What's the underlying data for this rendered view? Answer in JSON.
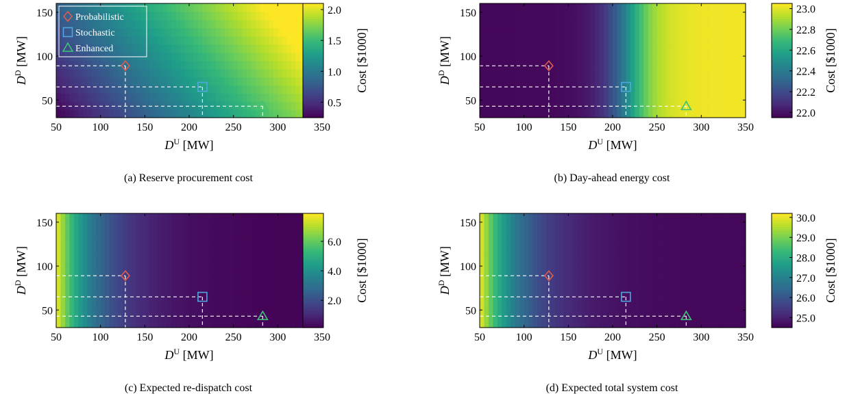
{
  "colormap": [
    "#440154",
    "#482878",
    "#3e4989",
    "#31688e",
    "#26828e",
    "#1f9e89",
    "#35b779",
    "#6ece58",
    "#b5de2b",
    "#fde725"
  ],
  "legend": {
    "items": [
      {
        "name": "Probabilistic",
        "marker": "diamond",
        "color": "#e05a4f"
      },
      {
        "name": "Stochastic",
        "marker": "square",
        "color": "#4ea8de"
      },
      {
        "name": "Enhanced",
        "marker": "triangle",
        "color": "#3ec27a"
      }
    ]
  },
  "chart_data": [
    {
      "type": "heatmap",
      "caption": "(a) Reserve procurement cost",
      "xlabel": "D^U [MW]",
      "ylabel": "D^D [MW]",
      "xlim": [
        50,
        350
      ],
      "ylim": [
        30,
        160
      ],
      "xticks": [
        50,
        100,
        150,
        200,
        250,
        300,
        350
      ],
      "yticks": [
        50,
        100,
        150
      ],
      "colorbar": {
        "label": "Cost [$1000]",
        "range": [
          0.25,
          2.1
        ],
        "ticks": [
          "0.5",
          "1.0",
          "1.5",
          "2.0"
        ]
      },
      "surface": {
        "kind": "sum",
        "base": 0.25,
        "ax": 0.0055,
        "ay": 0.0045
      },
      "show_legend": true,
      "points": [
        {
          "name": "Probabilistic",
          "x": 128,
          "y": 89
        },
        {
          "name": "Stochastic",
          "x": 215,
          "y": 65
        },
        {
          "name": "Enhanced",
          "x": 283,
          "y": 43
        }
      ]
    },
    {
      "type": "heatmap",
      "caption": "(b) Day-ahead energy cost",
      "xlabel": "D^U [MW]",
      "ylabel": "D^D [MW]",
      "xlim": [
        50,
        350
      ],
      "ylim": [
        30,
        160
      ],
      "xticks": [
        50,
        100,
        150,
        200,
        250,
        300,
        350
      ],
      "yticks": [
        50,
        100,
        150
      ],
      "colorbar": {
        "label": "Cost [$1000]",
        "range": [
          21.95,
          23.05
        ],
        "ticks": [
          "22.0",
          "22.2",
          "22.4",
          "22.6",
          "22.8",
          "23.0"
        ]
      },
      "surface": {
        "kind": "sigmoid",
        "min": 21.97,
        "max": 23.03,
        "mid": 218,
        "width": 16
      },
      "show_legend": false,
      "points": [
        {
          "name": "Probabilistic",
          "x": 128,
          "y": 89
        },
        {
          "name": "Stochastic",
          "x": 215,
          "y": 65
        },
        {
          "name": "Enhanced",
          "x": 283,
          "y": 43
        }
      ]
    },
    {
      "type": "heatmap",
      "caption": "(c) Expected re-dispatch cost",
      "xlabel": "D^U [MW]",
      "ylabel": "D^D [MW]",
      "xlim": [
        50,
        350
      ],
      "ylim": [
        30,
        160
      ],
      "xticks": [
        50,
        100,
        150,
        200,
        250,
        300,
        350
      ],
      "yticks": [
        50,
        100,
        150
      ],
      "colorbar": {
        "label": "Cost [$1000]",
        "range": [
          0.15,
          7.9
        ],
        "ticks": [
          "2.0",
          "4.0",
          "6.0"
        ]
      },
      "surface": {
        "kind": "decay",
        "min": 0.2,
        "max": 7.8,
        "scale": 45
      },
      "show_legend": false,
      "points": [
        {
          "name": "Probabilistic",
          "x": 128,
          "y": 89
        },
        {
          "name": "Stochastic",
          "x": 215,
          "y": 65
        },
        {
          "name": "Enhanced",
          "x": 283,
          "y": 43
        }
      ]
    },
    {
      "type": "heatmap",
      "caption": "(d) Expected total system cost",
      "xlabel": "D^U [MW]",
      "ylabel": "D^D [MW]",
      "xlim": [
        50,
        350
      ],
      "ylim": [
        30,
        160
      ],
      "xticks": [
        50,
        100,
        150,
        200,
        250,
        300,
        350
      ],
      "yticks": [
        50,
        100,
        150
      ],
      "colorbar": {
        "label": "Cost [$1000]",
        "range": [
          24.5,
          30.2
        ],
        "ticks": [
          "25.0",
          "26.0",
          "27.0",
          "28.0",
          "29.0",
          "30.0"
        ]
      },
      "surface": {
        "kind": "decay",
        "min": 24.6,
        "max": 30.1,
        "scale": 45
      },
      "show_legend": false,
      "points": [
        {
          "name": "Probabilistic",
          "x": 128,
          "y": 89
        },
        {
          "name": "Stochastic",
          "x": 215,
          "y": 65
        },
        {
          "name": "Enhanced",
          "x": 283,
          "y": 43
        }
      ]
    }
  ]
}
